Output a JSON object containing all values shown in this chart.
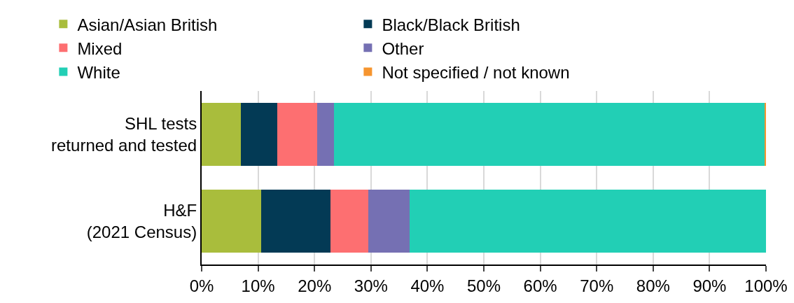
{
  "chart_data": {
    "type": "bar",
    "orientation": "horizontal",
    "stacked": true,
    "categories": [
      "SHL tests\nreturned and tested",
      "H&F\n(2021 Census)"
    ],
    "series": [
      {
        "name": "Asian/Asian British",
        "color": "#a9bd3c",
        "values": [
          6.9,
          10.5
        ]
      },
      {
        "name": "Black/Black British",
        "color": "#033a55",
        "values": [
          6.5,
          12.3
        ]
      },
      {
        "name": "Mixed",
        "color": "#fd6f71",
        "values": [
          7.1,
          6.7
        ]
      },
      {
        "name": "Other",
        "color": "#7570b3",
        "values": [
          3.0,
          7.3
        ]
      },
      {
        "name": "White",
        "color": "#22cfb5",
        "values": [
          76.3,
          63.2
        ]
      },
      {
        "name": "Not specified / not known",
        "color": "#f6952f",
        "values": [
          0.2,
          0
        ]
      }
    ],
    "xlim": [
      0,
      100
    ],
    "xticks": [
      {
        "value": 0,
        "label": "0%"
      },
      {
        "value": 10,
        "label": "10%"
      },
      {
        "value": 20,
        "label": "20%"
      },
      {
        "value": 30,
        "label": "30%"
      },
      {
        "value": 40,
        "label": "40%"
      },
      {
        "value": 50,
        "label": "50%"
      },
      {
        "value": 60,
        "label": "60%"
      },
      {
        "value": 70,
        "label": "70%"
      },
      {
        "value": 80,
        "label": "80%"
      },
      {
        "value": 90,
        "label": "90%"
      },
      {
        "value": 100,
        "label": "100%"
      }
    ],
    "grid": "x",
    "legend": "top"
  }
}
